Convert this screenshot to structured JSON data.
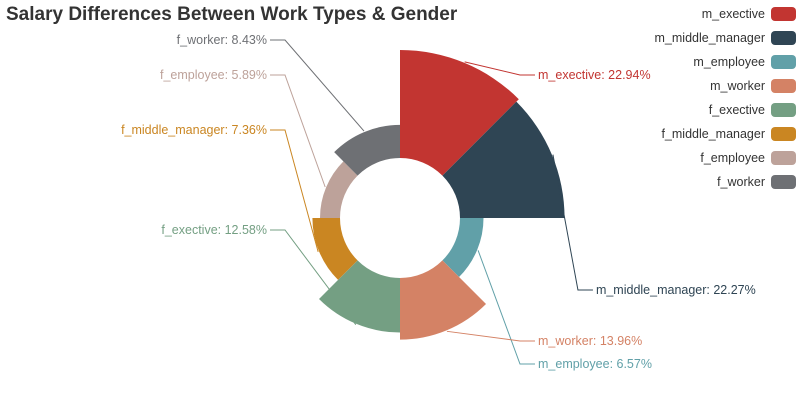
{
  "chart_data": {
    "type": "pie",
    "variant": "rose-radius",
    "title": "Salary Differences Between Work Types & Gender",
    "legend_position": "top-right",
    "slices": [
      {
        "name": "m_exective",
        "value": 22.94,
        "label": "m_exective: 22.94%",
        "color": "#c23531"
      },
      {
        "name": "m_middle_manager",
        "value": 22.27,
        "label": "m_middle_manager: 22.27%",
        "color": "#2f4554"
      },
      {
        "name": "m_employee",
        "value": 6.57,
        "label": "m_employee: 6.57%",
        "color": "#61a0a8"
      },
      {
        "name": "m_worker",
        "value": 13.96,
        "label": "m_worker: 13.96%",
        "color": "#d48265"
      },
      {
        "name": "f_exective",
        "value": 12.58,
        "label": "f_exective: 12.58%",
        "color": "#749f83"
      },
      {
        "name": "f_middle_manager",
        "value": 7.36,
        "label": "f_middle_manager: 7.36%",
        "color": "#ca8622"
      },
      {
        "name": "f_employee",
        "value": 5.89,
        "label": "f_employee: 5.89%",
        "color": "#bda29a"
      },
      {
        "name": "f_worker",
        "value": 8.43,
        "label": "f_worker: 8.43%",
        "color": "#6e7074"
      }
    ]
  }
}
